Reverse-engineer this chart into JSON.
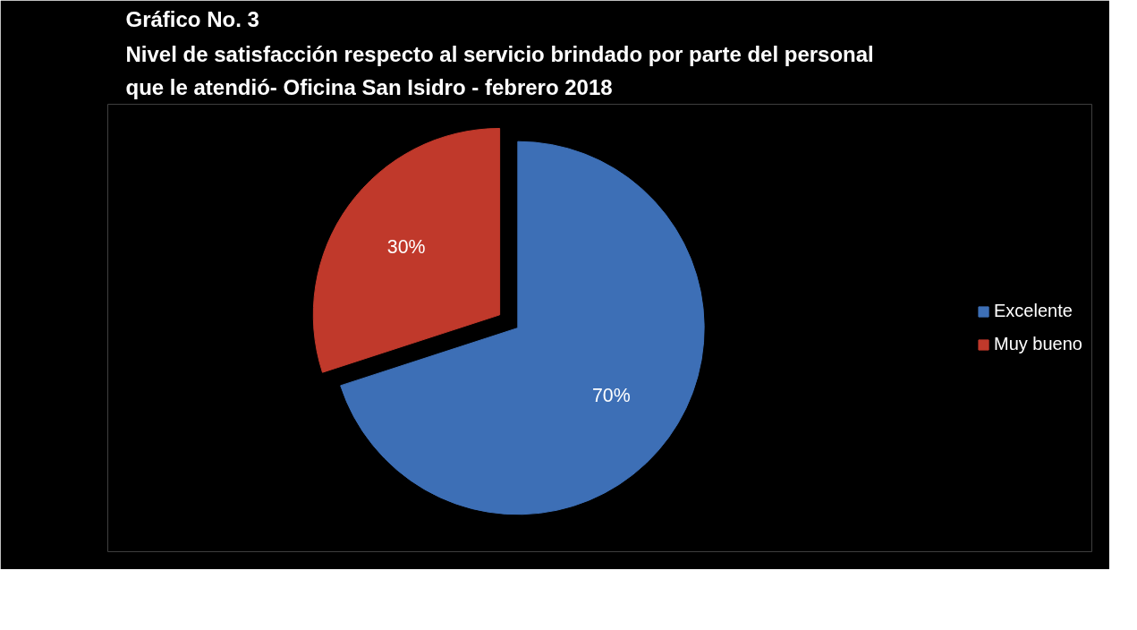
{
  "chart_data": {
    "type": "pie",
    "title": "Gráfico No. 3",
    "subtitle": "Nivel de satisfacción respecto al servicio brindado por parte del personal que le atendió- Oficina San Isidro - febrero 2018",
    "categories": [
      "Excelente",
      "Muy bueno"
    ],
    "values": [
      70,
      30
    ],
    "colors": [
      "#3d6fb6",
      "#c0392b"
    ],
    "value_labels": [
      "70%",
      "30%"
    ],
    "legend": "right"
  }
}
